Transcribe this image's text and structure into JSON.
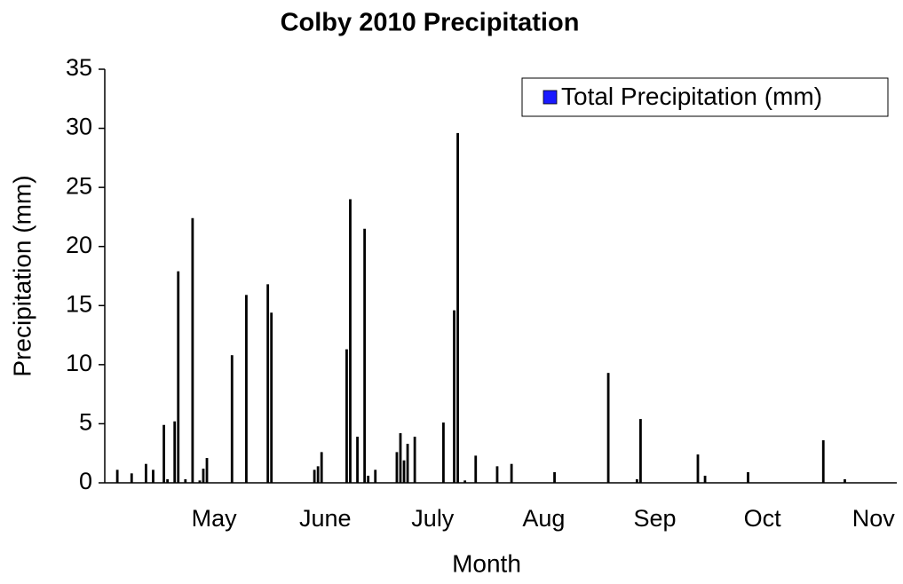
{
  "chart_data": {
    "type": "bar",
    "title": "Colby 2010 Precipitation",
    "x_label": "Month",
    "y_label": "Precipitation (mm)",
    "categories": [
      null,
      null,
      null,
      null,
      null,
      null,
      null,
      null,
      null,
      null,
      null,
      null,
      null,
      null,
      null,
      null,
      null,
      null,
      null,
      null,
      null,
      null,
      null,
      null,
      null,
      null,
      null,
      null,
      null,
      null,
      "May",
      null,
      null,
      null,
      null,
      null,
      null,
      null,
      null,
      null,
      null,
      null,
      null,
      null,
      null,
      null,
      null,
      null,
      null,
      null,
      null,
      null,
      null,
      null,
      null,
      null,
      null,
      null,
      null,
      null,
      null,
      "June",
      null,
      null,
      null,
      null,
      null,
      null,
      null,
      null,
      null,
      null,
      null,
      null,
      null,
      null,
      null,
      null,
      null,
      null,
      null,
      null,
      null,
      null,
      null,
      null,
      null,
      null,
      null,
      null,
      null,
      "July",
      null,
      null,
      null,
      null,
      null,
      null,
      null,
      null,
      null,
      null,
      null,
      null,
      null,
      null,
      null,
      null,
      null,
      null,
      null,
      null,
      null,
      null,
      null,
      null,
      null,
      null,
      null,
      null,
      null,
      null,
      "Aug",
      null,
      null,
      null,
      null,
      null,
      null,
      null,
      null,
      null,
      null,
      null,
      null,
      null,
      null,
      null,
      null,
      null,
      null,
      null,
      null,
      null,
      null,
      null,
      null,
      null,
      null,
      null,
      null,
      null,
      null,
      "Sep",
      null,
      null,
      null,
      null,
      null,
      null,
      null,
      null,
      null,
      null,
      null,
      null,
      null,
      null,
      null,
      null,
      null,
      null,
      null,
      null,
      null,
      null,
      null,
      null,
      null,
      null,
      null,
      null,
      null,
      "Oct",
      null,
      null,
      null,
      null,
      null,
      null,
      null,
      null,
      null,
      null,
      null,
      null,
      null,
      null,
      null,
      null,
      null,
      null,
      null,
      null,
      null,
      null,
      null,
      null,
      null,
      null,
      null,
      null,
      null,
      null,
      "Nov",
      null,
      null,
      null,
      null,
      null,
      null
    ],
    "series": [
      {
        "name": "Total Precipitation (mm)",
        "color": "#000000",
        "legend_color": "#1a1aff",
        "values": [
          null,
          null,
          null,
          1.1,
          null,
          null,
          null,
          0.8,
          null,
          null,
          null,
          1.6,
          null,
          1.1,
          null,
          null,
          4.9,
          0.3,
          null,
          5.2,
          17.9,
          null,
          0.3,
          null,
          22.4,
          null,
          0.2,
          1.2,
          2.1,
          null,
          null,
          null,
          null,
          null,
          null,
          10.8,
          null,
          null,
          null,
          15.9,
          null,
          null,
          null,
          null,
          null,
          16.8,
          14.4,
          null,
          null,
          null,
          null,
          null,
          null,
          null,
          null,
          null,
          null,
          null,
          1.1,
          1.4,
          2.6,
          null,
          null,
          null,
          null,
          null,
          null,
          11.3,
          24.0,
          null,
          3.9,
          null,
          21.5,
          0.6,
          null,
          1.1,
          null,
          null,
          null,
          null,
          null,
          2.6,
          4.2,
          1.9,
          3.3,
          null,
          3.9,
          null,
          null,
          null,
          null,
          null,
          null,
          null,
          5.1,
          null,
          null,
          14.6,
          29.6,
          null,
          0.2,
          null,
          null,
          2.3,
          null,
          null,
          null,
          null,
          null,
          1.4,
          null,
          null,
          null,
          1.6,
          null,
          null,
          null,
          null,
          null,
          null,
          null,
          null,
          null,
          null,
          null,
          0.9,
          null,
          null,
          null,
          null,
          null,
          null,
          null,
          null,
          null,
          null,
          null,
          null,
          null,
          null,
          9.3,
          null,
          null,
          null,
          null,
          null,
          null,
          null,
          0.3,
          5.4,
          null,
          null,
          null,
          null,
          null,
          null,
          null,
          null,
          null,
          null,
          null,
          null,
          null,
          null,
          null,
          2.4,
          null,
          0.6,
          null,
          null,
          null,
          null,
          null,
          null,
          null,
          null,
          null,
          null,
          null,
          0.9,
          null,
          null,
          null,
          null,
          null,
          null,
          null,
          null,
          null,
          null,
          null,
          null,
          null,
          null,
          null,
          null,
          null,
          null,
          null,
          null,
          3.6,
          null,
          null,
          null,
          null,
          null,
          0.3,
          null,
          null,
          null,
          null,
          null,
          null,
          null,
          null,
          null,
          null,
          null,
          null,
          null,
          null
        ]
      }
    ],
    "ylim": [
      0,
      35
    ],
    "yticks": [
      0,
      5,
      10,
      15,
      20,
      25,
      30,
      35
    ],
    "grid": false,
    "legend": "top-right"
  }
}
